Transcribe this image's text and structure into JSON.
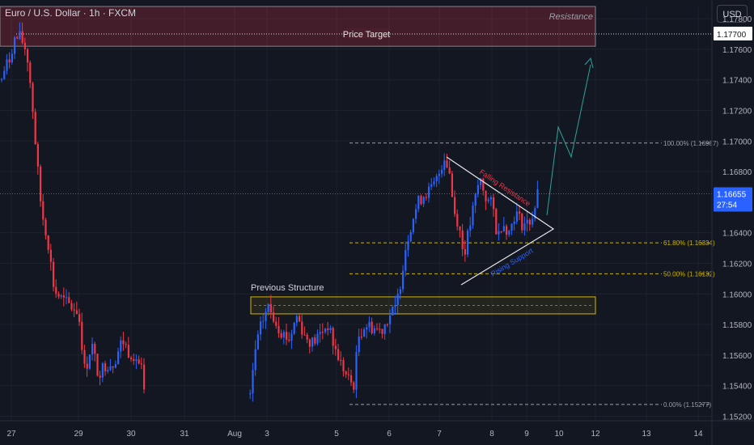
{
  "header": {
    "symbol_title": "Euro / U.S. Dollar · 1h · FXCM",
    "currency_button": "USD"
  },
  "colors": {
    "background": "#131722",
    "up": "#2962ff",
    "down": "#f23645",
    "grid": "#1e222d",
    "axis_text": "#b2b5be"
  },
  "annotations": {
    "price_target": "Price Target",
    "resistance": "Resistance",
    "previous_structure": "Previous Structure",
    "falling_resistance": "Falling Resistance",
    "rising_support": "Rising Support"
  },
  "chart_data": {
    "type": "candlestick",
    "title": "Euro / U.S. Dollar · 1h · FXCM",
    "ylim": [
      1.1516,
      1.1788
    ],
    "y_ticks": [
      "1.17800",
      "1.17600",
      "1.17400",
      "1.17200",
      "1.17000",
      "1.16800",
      "1.16400",
      "1.16200",
      "1.16000",
      "1.15800",
      "1.15600",
      "1.15400",
      "1.15200"
    ],
    "x_ticks": [
      "27",
      "29",
      "30",
      "31",
      "Aug",
      "3",
      "5",
      "6",
      "7",
      "8",
      "9",
      "10",
      "12",
      "13",
      "14"
    ],
    "current_price": "1.16655",
    "countdown": "27:54",
    "target_price": "1.17700",
    "fib_levels": [
      {
        "label": "100.00% (1.16987)",
        "price": 1.16987
      },
      {
        "label": "61.80% (1.16334)",
        "price": 1.16334
      },
      {
        "label": "50.00% (1.16132)",
        "price": 1.16132
      },
      {
        "label": "0.00% (1.15277)",
        "price": 1.15277
      }
    ],
    "resistance_zone": [
      1.1762,
      1.1788
    ],
    "structure_zone": [
      1.1588,
      1.1597
    ],
    "path": [
      [
        0,
        1.1738
      ],
      [
        5,
        1.1748
      ],
      [
        10,
        1.1752
      ],
      [
        16,
        1.1766
      ],
      [
        24,
        1.1768
      ],
      [
        32,
        1.1758
      ],
      [
        38,
        1.173
      ],
      [
        44,
        1.169
      ],
      [
        50,
        1.1655
      ],
      [
        58,
        1.1635
      ],
      [
        66,
        1.1602
      ],
      [
        76,
        1.1596
      ],
      [
        86,
        1.1592
      ],
      [
        96,
        1.1588
      ],
      [
        104,
        1.1548
      ],
      [
        112,
        1.1568
      ],
      [
        120,
        1.1548
      ],
      [
        130,
        1.1554
      ],
      [
        140,
        1.1555
      ],
      [
        150,
        1.157
      ],
      [
        158,
        1.1562
      ],
      [
        166,
        1.156
      ],
      [
        174,
        1.155
      ],
      [
        180,
        1.1518
      ],
      [
        306,
        1.152
      ],
      [
        314,
        1.1562
      ],
      [
        322,
        1.158
      ],
      [
        330,
        1.1592
      ],
      [
        338,
        1.1584
      ],
      [
        346,
        1.1576
      ],
      [
        356,
        1.157
      ],
      [
        366,
        1.1586
      ],
      [
        376,
        1.1572
      ],
      [
        386,
        1.1568
      ],
      [
        396,
        1.1575
      ],
      [
        404,
        1.158
      ],
      [
        412,
        1.1565
      ],
      [
        420,
        1.1555
      ],
      [
        428,
        1.1545
      ],
      [
        436,
        1.154
      ],
      [
        442,
        1.1572
      ],
      [
        450,
        1.158
      ],
      [
        460,
        1.1578
      ],
      [
        470,
        1.1576
      ],
      [
        480,
        1.1586
      ],
      [
        488,
        1.159
      ],
      [
        494,
        1.1608
      ],
      [
        500,
        1.163
      ],
      [
        508,
        1.1648
      ],
      [
        516,
        1.166
      ],
      [
        524,
        1.1666
      ],
      [
        532,
        1.1668
      ],
      [
        540,
        1.1676
      ],
      [
        548,
        1.169
      ],
      [
        554,
        1.1682
      ],
      [
        560,
        1.1654
      ],
      [
        566,
        1.1646
      ],
      [
        572,
        1.1625
      ],
      [
        578,
        1.164
      ],
      [
        584,
        1.1656
      ],
      [
        592,
        1.1676
      ],
      [
        600,
        1.1662
      ],
      [
        608,
        1.1658
      ],
      [
        614,
        1.1636
      ],
      [
        620,
        1.1648
      ],
      [
        628,
        1.164
      ],
      [
        636,
        1.1654
      ],
      [
        644,
        1.1646
      ],
      [
        652,
        1.1646
      ],
      [
        658,
        1.1652
      ],
      [
        664,
        1.1666
      ]
    ]
  }
}
